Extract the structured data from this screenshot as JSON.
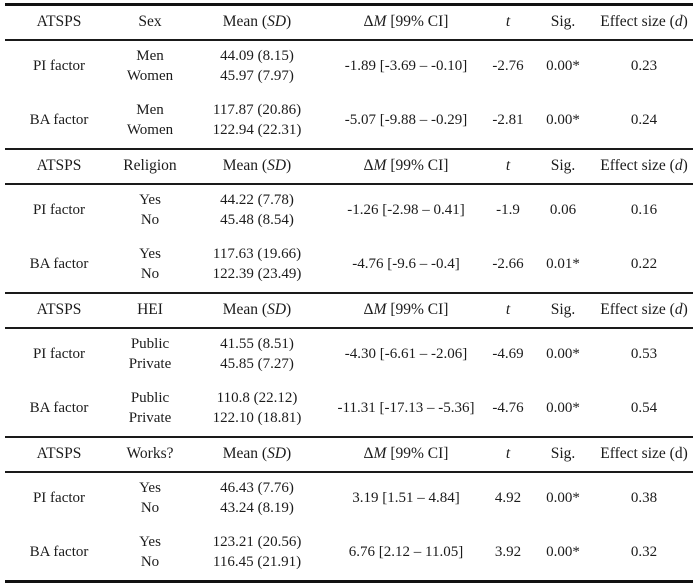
{
  "labels": {
    "atsps": "ATSPS",
    "mean_pre": "Mean (",
    "mean_sd": "SD",
    "mean_post": ")",
    "dm_delta": "Δ",
    "dm_m": "M",
    "dm_post": " [99% CI]",
    "t": "t",
    "sig": "Sig.",
    "effect_pre": "Effect size (",
    "effect_d": "d",
    "effect_post": ")"
  },
  "sections": [
    {
      "group_header": "Sex",
      "rows": [
        {
          "factor": "PI factor",
          "group1": "Men",
          "group2": "Women",
          "mean1": "44.09 (8.15)",
          "mean2": "45.97 (7.97)",
          "delta_ci": "-1.89 [-3.69 – -0.10]",
          "t": "-2.76",
          "sig": "0.00*",
          "effect": "0.23"
        },
        {
          "factor": "BA factor",
          "group1": "Men",
          "group2": "Women",
          "mean1": "117.87 (20.86)",
          "mean2": "122.94 (22.31)",
          "delta_ci": "-5.07 [-9.88 – -0.29]",
          "t": "-2.81",
          "sig": "0.00*",
          "effect": "0.24"
        }
      ]
    },
    {
      "group_header": "Religion",
      "rows": [
        {
          "factor": "PI factor",
          "group1": "Yes",
          "group2": "No",
          "mean1": "44.22 (7.78)",
          "mean2": "45.48 (8.54)",
          "delta_ci": "-1.26 [-2.98 – 0.41]",
          "t": "-1.9",
          "sig": "0.06",
          "effect": "0.16"
        },
        {
          "factor": "BA factor",
          "group1": "Yes",
          "group2": "No",
          "mean1": "117.63 (19.66)",
          "mean2": "122.39 (23.49)",
          "delta_ci": "-4.76 [-9.6 – -0.4]",
          "t": "-2.66",
          "sig": "0.01*",
          "effect": "0.22"
        }
      ]
    },
    {
      "group_header": "HEI",
      "rows": [
        {
          "factor": "PI factor",
          "group1": "Public",
          "group2": "Private",
          "mean1": "41.55 (8.51)",
          "mean2": "45.85 (7.27)",
          "delta_ci": "-4.30 [-6.61 – -2.06]",
          "t": "-4.69",
          "sig": "0.00*",
          "effect": "0.53"
        },
        {
          "factor": "BA factor",
          "group1": "Public",
          "group2": "Private",
          "mean1": "110.8 (22.12)",
          "mean2": "122.10 (18.81)",
          "delta_ci": "-11.31 [-17.13 – -5.36]",
          "t": "-4.76",
          "sig": "0.00*",
          "effect": "0.54"
        }
      ]
    },
    {
      "group_header": "Works?",
      "rows": [
        {
          "factor": "PI factor",
          "group1": "Yes",
          "group2": "No",
          "mean1": "46.43 (7.76)",
          "mean2": "43.24 (8.19)",
          "delta_ci": "3.19 [1.51 – 4.84]",
          "t": "4.92",
          "sig": "0.00*",
          "effect": "0.38"
        },
        {
          "factor": "BA factor",
          "group1": "Yes",
          "group2": "No",
          "mean1": "123.21 (20.56)",
          "mean2": "116.45 (21.91)",
          "delta_ci": "6.76 [2.12 – 11.05]",
          "t": "3.92",
          "sig": "0.00*",
          "effect": "0.32"
        }
      ]
    }
  ]
}
